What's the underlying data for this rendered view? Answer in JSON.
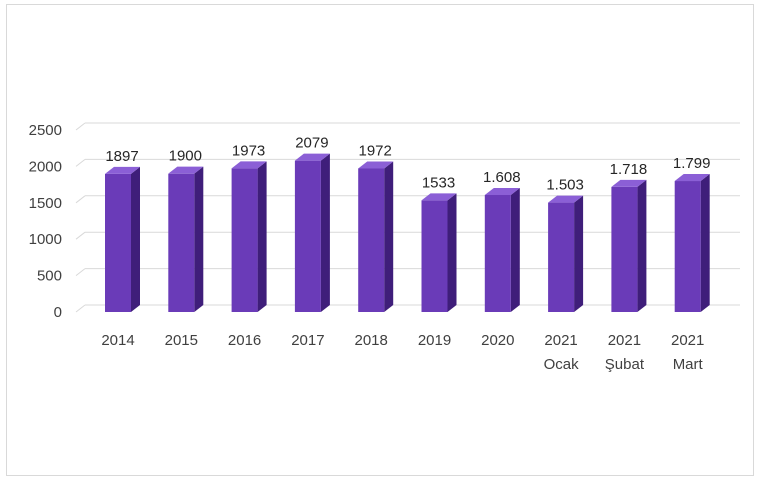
{
  "chart_data": {
    "type": "bar",
    "title": "",
    "xlabel": "",
    "ylabel": "",
    "ylim": [
      0,
      2500
    ],
    "yticks": [
      "0",
      "500",
      "1000",
      "1500",
      "2000",
      "2500"
    ],
    "categories": [
      [
        "2014"
      ],
      [
        "2015"
      ],
      [
        "2016"
      ],
      [
        "2017"
      ],
      [
        "2018"
      ],
      [
        "2019"
      ],
      [
        "2020"
      ],
      [
        "2021",
        "Ocak"
      ],
      [
        "2021",
        "Şubat"
      ],
      [
        "2021",
        "Mart"
      ]
    ],
    "values": [
      1897,
      1900,
      1973,
      2079,
      1972,
      1533,
      1608,
      1503,
      1718,
      1799
    ],
    "data_labels": [
      "1897",
      "1900",
      "1973",
      "2079",
      "1972",
      "1533",
      "1.608",
      "1.503",
      "1.718",
      "1.799"
    ],
    "grid": true,
    "legend": "none",
    "colors": {
      "bar_front": "#6a3bb8",
      "bar_side": "#3f1e7a",
      "bar_top": "#8b5fd6",
      "grid": "#d9d9d9"
    }
  }
}
